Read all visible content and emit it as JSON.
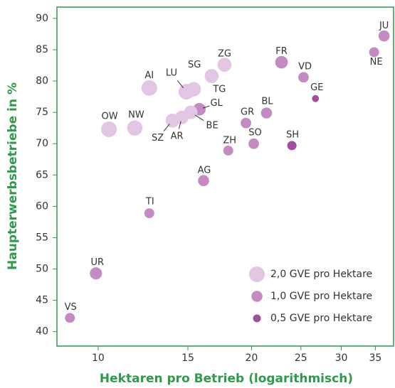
{
  "chart_data": {
    "type": "scatter",
    "x_label": "Hektaren pro Betrieb (logarithmisch)",
    "y_label": "Haupterwerbsbetriebe in %",
    "log_x": true,
    "xlim": [
      8.3,
      38
    ],
    "ylim": [
      37.7,
      91.8
    ],
    "xticks": [
      10,
      15,
      20,
      25,
      30,
      35
    ],
    "yticks": [
      40,
      45,
      50,
      55,
      60,
      65,
      70,
      75,
      80,
      85,
      90
    ],
    "legend_position": "lower right",
    "legend": [
      {
        "name": "2,0 GVE pro Hektare",
        "size": 2.0,
        "color": "#e3c6e3"
      },
      {
        "name": "1,0 GVE pro Hektare",
        "size": 1.0,
        "color": "#c48ac2"
      },
      {
        "name": "0,5 GVE pro Hektare",
        "size": 0.5,
        "color": "#a0509f"
      }
    ],
    "labels": [
      "VS",
      "UR",
      "TI",
      "AG",
      "ZH",
      "SO",
      "SH",
      "GR",
      "BL",
      "GE",
      "VD",
      "FR",
      "NE",
      "JU",
      "ZG",
      "TG",
      "SG",
      "LU",
      "AI",
      "OW",
      "NW",
      "GL",
      "BE",
      "AR",
      "SZ"
    ],
    "x": [
      8.8,
      9.9,
      12.6,
      16.1,
      18.0,
      20.2,
      24.0,
      19.5,
      21.4,
      26.7,
      25.3,
      22.9,
      34.8,
      36.4,
      17.7,
      16.7,
      15.4,
      14.9,
      12.6,
      10.5,
      11.8,
      15.8,
      15.2,
      14.6,
      14.0
    ],
    "y": [
      42.2,
      49.3,
      58.9,
      64.1,
      68.9,
      70.0,
      69.7,
      73.3,
      74.9,
      77.2,
      80.6,
      83.0,
      84.6,
      87.2,
      82.6,
      80.8,
      78.7,
      78.3,
      78.9,
      72.3,
      72.5,
      75.5,
      75.0,
      74.2,
      73.7
    ],
    "sizes": [
      0.8,
      1.2,
      0.8,
      1.0,
      0.8,
      0.9,
      0.7,
      0.9,
      1.0,
      0.4,
      0.9,
      1.3,
      0.8,
      1.0,
      1.6,
      1.6,
      1.7,
      2.0,
      2.0,
      2.0,
      1.9,
      1.3,
      1.5,
      1.5,
      1.6
    ]
  }
}
